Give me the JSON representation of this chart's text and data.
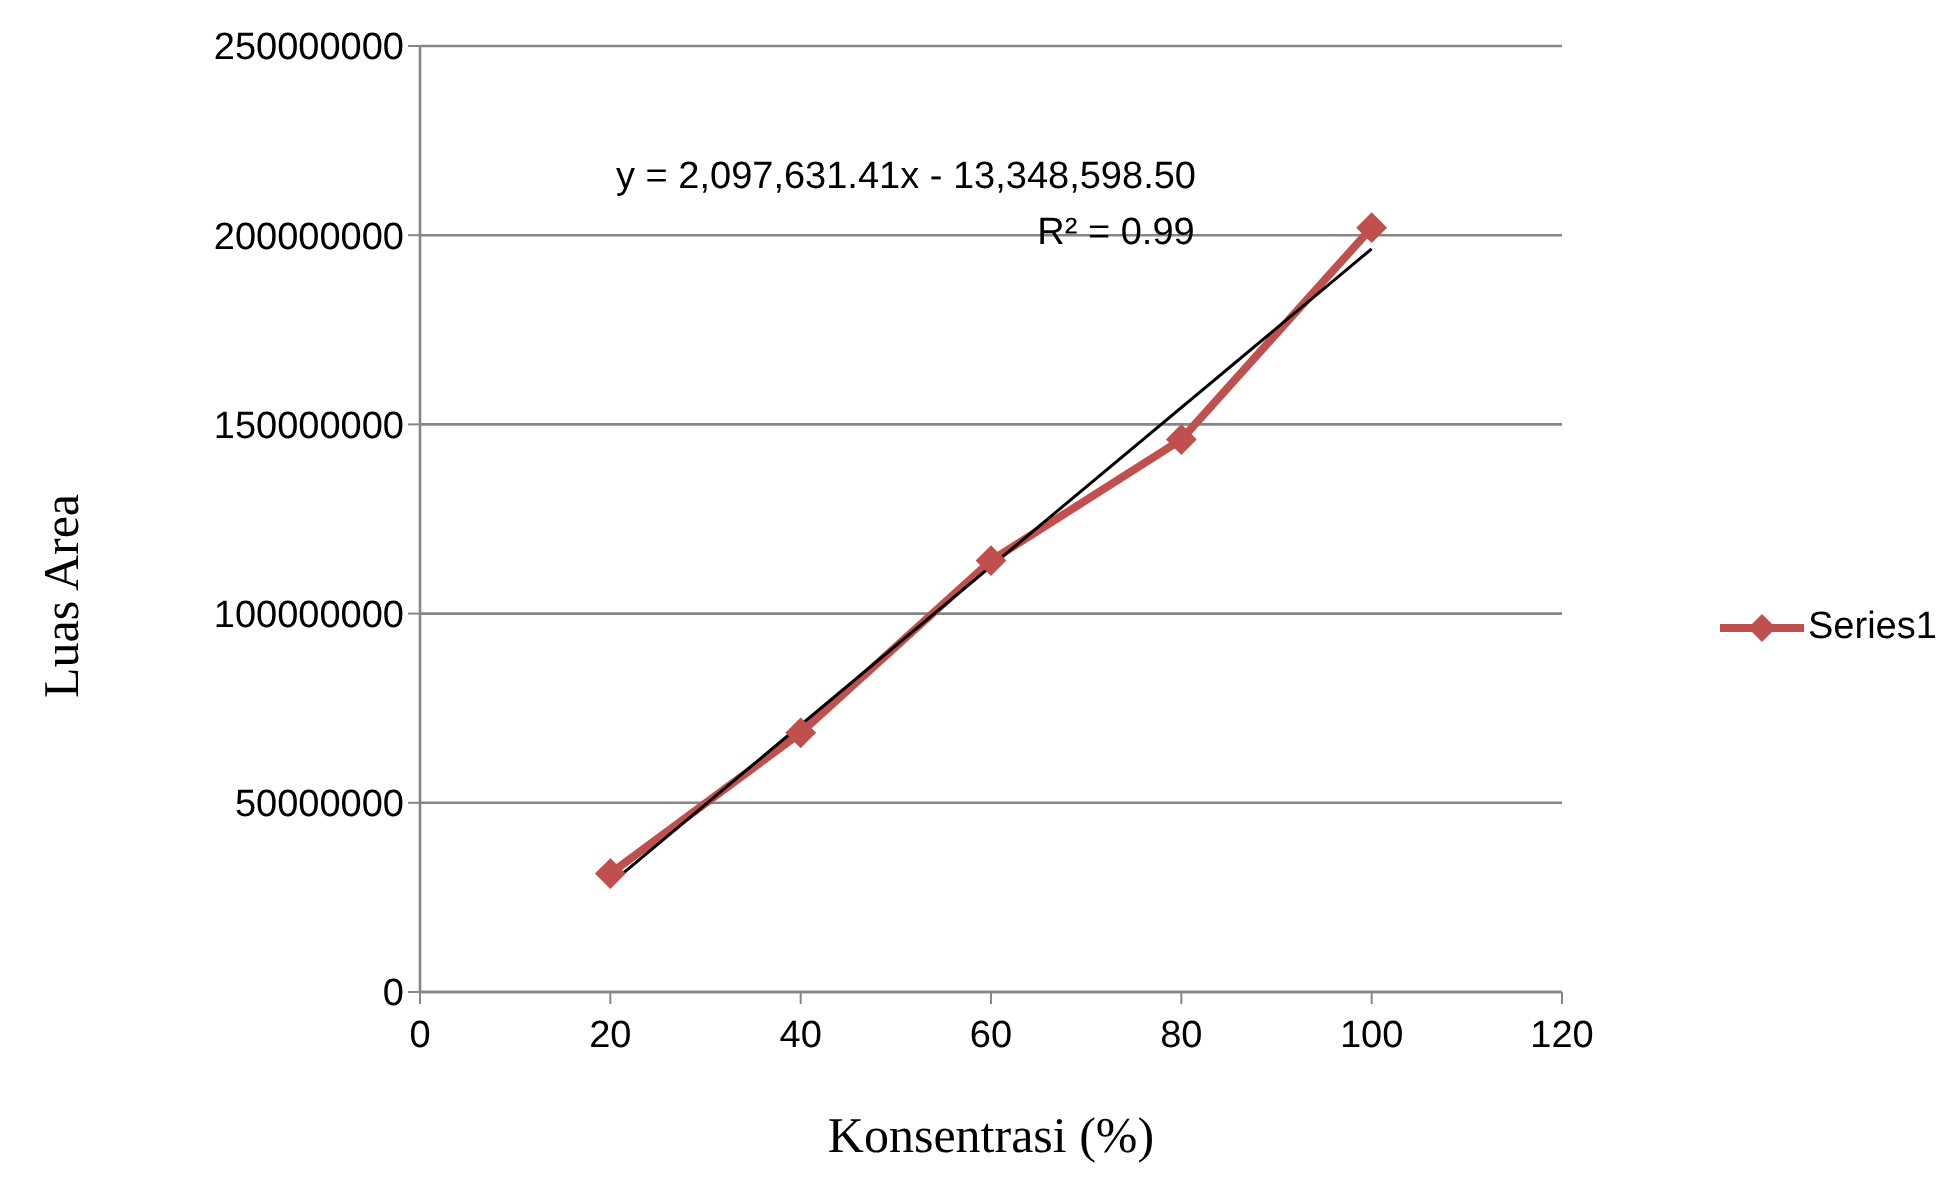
{
  "chart_data": {
    "type": "line",
    "xlabel": "Konsentrasi (%)",
    "ylabel": "Luas Area",
    "x": [
      20,
      40,
      60,
      80,
      100
    ],
    "series": [
      {
        "name": "Series1",
        "color": "#c0504d",
        "values": [
          31300000,
          68500000,
          114000000,
          146000000,
          202000000
        ],
        "marker": "diamond"
      },
      {
        "type": "line",
        "color": "#000000",
        "x": [
          20,
          100
        ],
        "values": [
          28600000,
          196400000
        ],
        "marker": "none"
      }
    ],
    "annotations": [
      "y = 2,097,631.41x - 13,348,598.50",
      "R² = 0.99"
    ],
    "xlim": [
      0,
      120
    ],
    "xticks": [
      0,
      20,
      40,
      60,
      80,
      100,
      120
    ],
    "ylim": [
      0,
      250000000
    ],
    "yticks": [
      0,
      50000000,
      100000000,
      150000000,
      200000000,
      250000000
    ],
    "grid": "y",
    "legend": "right"
  }
}
